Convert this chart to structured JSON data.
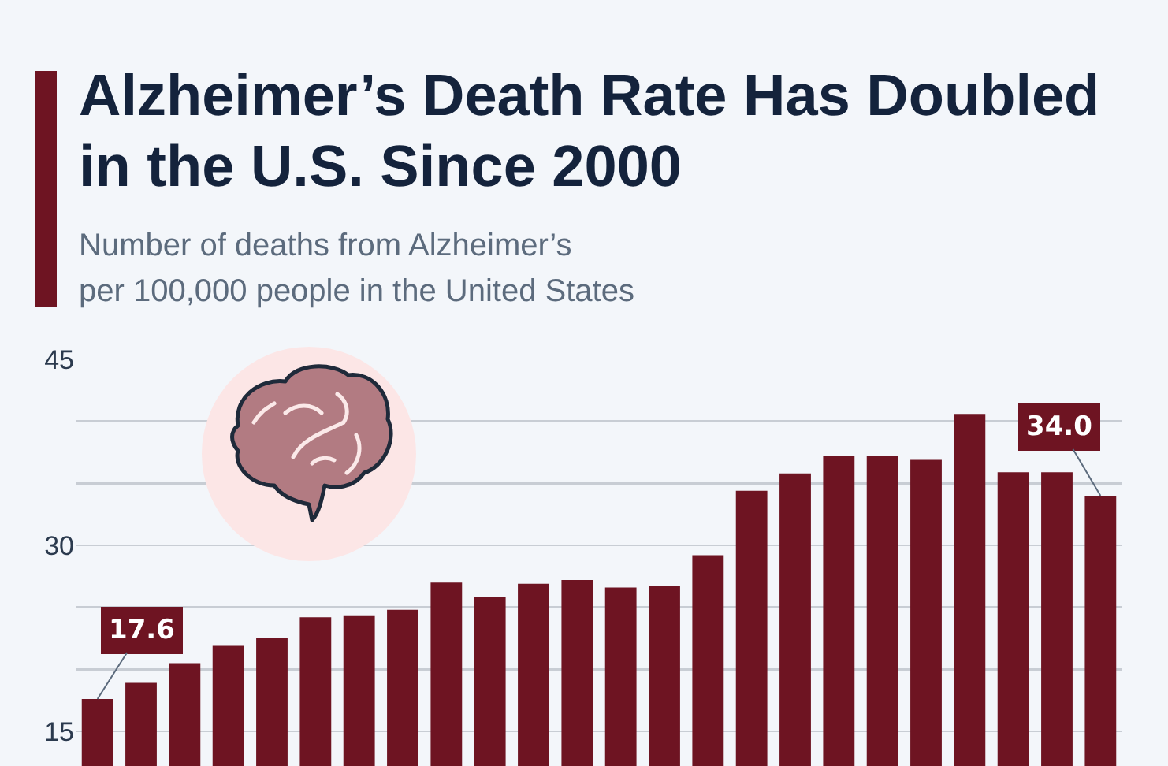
{
  "chart_data": {
    "type": "bar",
    "title": "Alzheimer’s Death Rate Has Doubled in the U.S. Since 2000",
    "subtitle": "Number of deaths from Alzheimer’s\nper 100,000 people in the United States",
    "categories": [
      null,
      null,
      null,
      null,
      null,
      null,
      null,
      null,
      null,
      null,
      null,
      null,
      null,
      null,
      null,
      null,
      null,
      null,
      null,
      null,
      null,
      null,
      null,
      null
    ],
    "values": [
      17.6,
      18.9,
      20.5,
      21.9,
      22.5,
      24.2,
      24.3,
      24.8,
      27.0,
      25.8,
      26.9,
      27.2,
      26.6,
      26.7,
      29.2,
      34.4,
      35.8,
      37.2,
      37.2,
      36.9,
      40.6,
      35.9,
      35.9,
      34.0
    ],
    "value_labels": [
      "17.6",
      null,
      null,
      null,
      null,
      null,
      null,
      null,
      null,
      null,
      null,
      null,
      null,
      null,
      null,
      null,
      null,
      null,
      null,
      null,
      null,
      null,
      null,
      "34.0"
    ],
    "color": "#6e1422",
    "ylim": [
      12.2,
      45
    ],
    "yticks": [
      15,
      {
        "value": 20,
        "label": null
      },
      {
        "value": 25,
        "label": null
      },
      30,
      {
        "value": 35,
        "label": null
      },
      {
        "value": 40,
        "label": null
      },
      45
    ],
    "grid": "y"
  }
}
